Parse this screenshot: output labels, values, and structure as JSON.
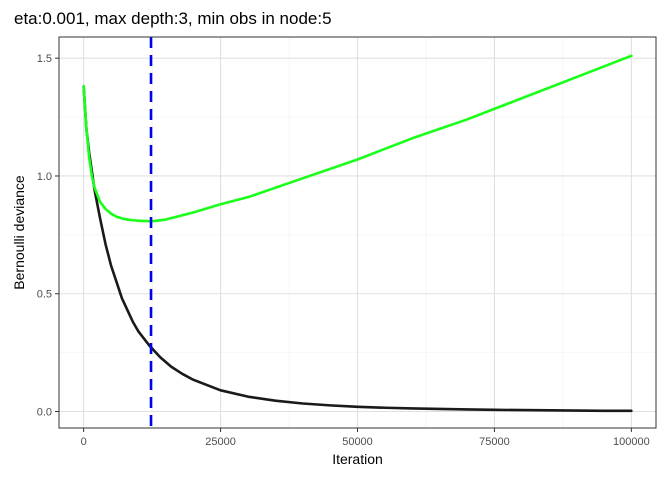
{
  "chart_data": {
    "type": "line",
    "title": "eta:0.001, max depth:3, min obs in node:5",
    "xlabel": "Iteration",
    "ylabel": "Bernoulli deviance",
    "xlim": [
      -4500,
      104500
    ],
    "ylim": [
      -0.07,
      1.59
    ],
    "x_ticks": [
      0,
      25000,
      50000,
      75000,
      100000
    ],
    "x_tick_labels": [
      "0",
      "25000",
      "50000",
      "75000",
      "100000"
    ],
    "y_ticks": [
      0.0,
      0.5,
      1.0,
      1.5
    ],
    "y_tick_labels": [
      "0.0",
      "0.5",
      "1.0",
      "1.5"
    ],
    "grid": true,
    "series": [
      {
        "color": "#1a1a1a",
        "x": [
          0,
          500,
          1000,
          2000,
          3000,
          4000,
          5000,
          6000,
          7000,
          8000,
          9000,
          10000,
          12000,
          14000,
          16000,
          18000,
          20000,
          25000,
          30000,
          35000,
          40000,
          45000,
          50000,
          55000,
          60000,
          65000,
          70000,
          75000,
          80000,
          85000,
          90000,
          95000,
          100000
        ],
        "y": [
          1.38,
          1.2,
          1.1,
          0.94,
          0.82,
          0.71,
          0.62,
          0.55,
          0.48,
          0.43,
          0.38,
          0.34,
          0.28,
          0.23,
          0.19,
          0.16,
          0.135,
          0.09,
          0.063,
          0.046,
          0.034,
          0.026,
          0.02,
          0.016,
          0.013,
          0.011,
          0.009,
          0.007,
          0.006,
          0.005,
          0.004,
          0.003,
          0.003
        ]
      },
      {
        "color": "#1aff1a",
        "x": [
          0,
          500,
          1000,
          1500,
          2000,
          3000,
          4000,
          5000,
          6000,
          7000,
          8000,
          9000,
          10000,
          11000,
          12000,
          13000,
          15000,
          17500,
          20000,
          25000,
          30000,
          40000,
          50000,
          60000,
          70000,
          80000,
          90000,
          100000
        ],
        "y": [
          1.38,
          1.2,
          1.08,
          1.0,
          0.95,
          0.89,
          0.86,
          0.84,
          0.827,
          0.82,
          0.815,
          0.812,
          0.81,
          0.809,
          0.808,
          0.809,
          0.815,
          0.83,
          0.845,
          0.88,
          0.91,
          0.99,
          1.07,
          1.16,
          1.24,
          1.33,
          1.42,
          1.51
        ]
      }
    ],
    "vline": {
      "x": 12300,
      "color": "#0000ee",
      "style": "dashed"
    }
  }
}
